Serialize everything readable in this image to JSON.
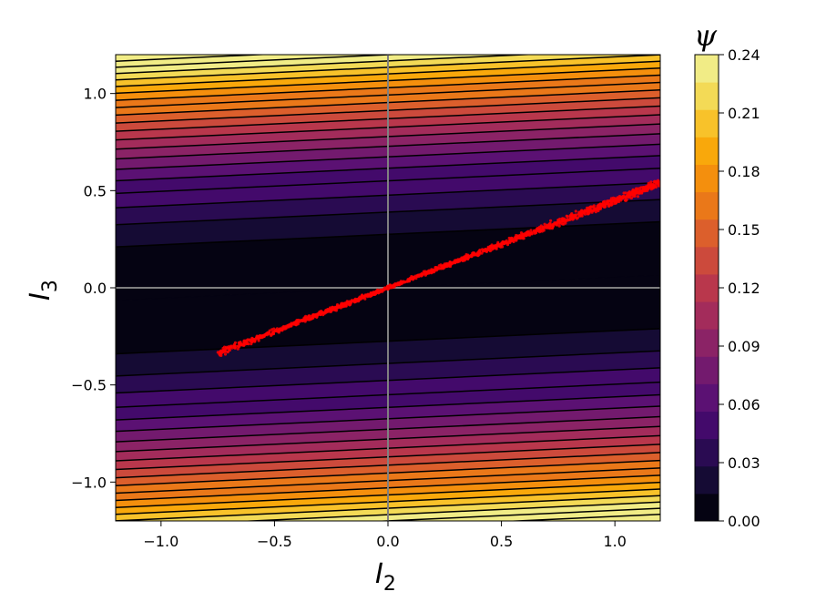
{
  "chart_data": {
    "type": "heatmap",
    "title": "",
    "xlabel": {
      "base": "I",
      "sub": "2"
    },
    "ylabel": {
      "base": "I",
      "sub": "3"
    },
    "xlim": [
      -1.2,
      1.2
    ],
    "ylim": [
      -1.2,
      1.2
    ],
    "xticks": [
      -1.0,
      -0.5,
      0.0,
      0.5,
      1.0
    ],
    "xtick_labels": [
      "−1.0",
      "−0.5",
      "0.0",
      "0.5",
      "1.0"
    ],
    "yticks": [
      -1.0,
      -0.5,
      0.0,
      0.5,
      1.0
    ],
    "ytick_labels": [
      "−1.0",
      "−0.5",
      "0.0",
      "0.5",
      "1.0"
    ],
    "field": {
      "description_formula": "psi = 0.165 * (I3 - 0.054*I2)^2",
      "coef": 0.165,
      "tilt": 0.054
    },
    "contour_levels": [
      0.0,
      0.0125,
      0.025,
      0.0375,
      0.05,
      0.0625,
      0.075,
      0.0875,
      0.1,
      0.1125,
      0.125,
      0.1375,
      0.15,
      0.1625,
      0.175,
      0.1875,
      0.2,
      0.2125,
      0.225,
      0.2375,
      0.25
    ],
    "reference_lines": {
      "x": 0.0,
      "y": 0.0,
      "color": "#808080"
    },
    "scatter": {
      "color": "#ff0000",
      "x_range": [
        -0.75,
        1.2
      ],
      "slope": 0.45,
      "count": 1400
    },
    "colorbar": {
      "label": "ψ",
      "range": [
        0.0,
        0.24
      ],
      "ticks": [
        0.0,
        0.03,
        0.06,
        0.09,
        0.12,
        0.15,
        0.18,
        0.21,
        0.24
      ],
      "tick_labels": [
        "0.00",
        "0.03",
        "0.06",
        "0.09",
        "0.12",
        "0.15",
        "0.18",
        "0.21",
        "0.24"
      ],
      "colormap": "inferno",
      "colors": [
        "#050312",
        "#150b34",
        "#2a0b52",
        "#430a6b",
        "#5b1173",
        "#731a6e",
        "#8b2366",
        "#a32c5b",
        "#b9374c",
        "#cc4a3c",
        "#dc5f2c",
        "#ea7819",
        "#f48f0d",
        "#f9a80b",
        "#f8c22a",
        "#f3da56",
        "#f1ec86"
      ]
    }
  }
}
